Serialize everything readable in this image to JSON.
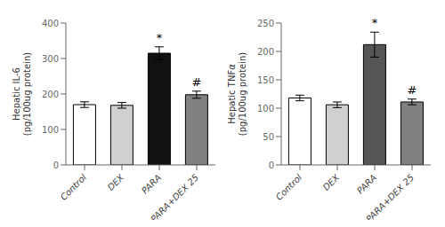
{
  "chart_data": [
    {
      "type": "bar",
      "ylabel": "Hepatic IL-6\n(pg/100ug protein)",
      "categories": [
        "Control",
        "DEX",
        "PARA",
        "PARA+DEX 25"
      ],
      "values": [
        170,
        168,
        315,
        198
      ],
      "errors": [
        8,
        8,
        18,
        10
      ],
      "colors": [
        "#ffffff",
        "#d0d0d0",
        "#111111",
        "#808080"
      ],
      "ylim": [
        0,
        400
      ],
      "yticks": [
        0,
        100,
        200,
        300,
        400
      ],
      "annotations": [
        {
          "category": "PARA",
          "text": "*"
        },
        {
          "category": "PARA+DEX 25",
          "text": "#"
        }
      ]
    },
    {
      "type": "bar",
      "ylabel": "Hepatic TNFα\n(pg/100ug protein)",
      "categories": [
        "Control",
        "DEX",
        "PARA",
        "PARA+DEX 25"
      ],
      "values": [
        118,
        106,
        212,
        111
      ],
      "errors": [
        5,
        5,
        22,
        5
      ],
      "colors": [
        "#ffffff",
        "#d0d0d0",
        "#555555",
        "#808080"
      ],
      "ylim": [
        0,
        250
      ],
      "yticks": [
        0,
        50,
        100,
        150,
        200,
        250
      ],
      "annotations": [
        {
          "category": "PARA",
          "text": "*"
        },
        {
          "category": "PARA+DEX 25",
          "text": "#"
        }
      ]
    }
  ]
}
